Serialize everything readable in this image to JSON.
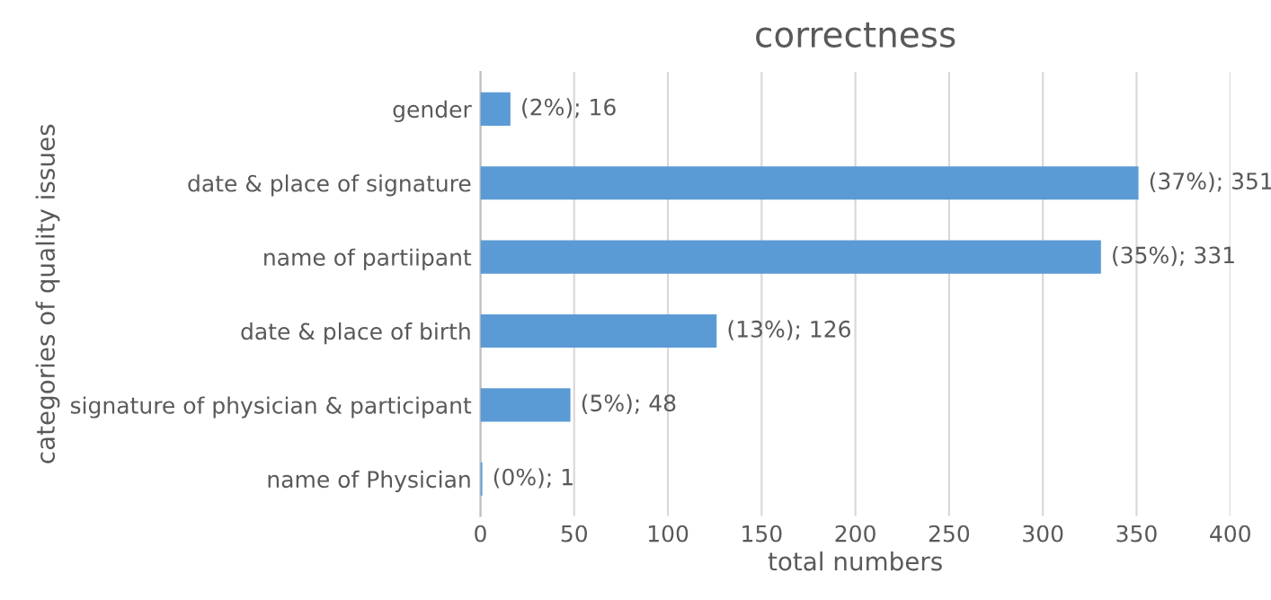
{
  "chart_data": {
    "type": "bar",
    "orientation": "horizontal",
    "title": "correctness",
    "xlabel": "total numbers",
    "ylabel": "categories of quality issues",
    "categories": [
      "gender",
      "date & place of signature",
      "name of partiipant",
      "date & place of birth",
      "signature of physician & participant",
      "name of Physician"
    ],
    "values": [
      16,
      351,
      331,
      126,
      48,
      1
    ],
    "value_labels": [
      "(2%); 16",
      "(37%); 351",
      "(35%); 331",
      "(13%); 126",
      "(5%); 48",
      "(0%); 1"
    ],
    "color": "#5b9bd5",
    "xlim": [
      0,
      400
    ],
    "xticks": [
      0,
      50,
      100,
      150,
      200,
      250,
      300,
      350,
      400
    ],
    "grid": "x",
    "legend": false
  }
}
